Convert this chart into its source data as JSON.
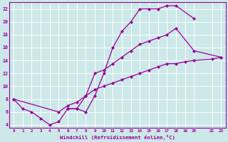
{
  "xlabel": "Windchill (Refroidissement éolien,°C)",
  "bg_color": "#cce8e8",
  "grid_color": "#ffffff",
  "line_color": "#990099",
  "xlim": [
    -0.5,
    23.5
  ],
  "ylim": [
    3.5,
    23
  ],
  "xticks": [
    0,
    1,
    2,
    3,
    4,
    5,
    6,
    7,
    8,
    9,
    10,
    11,
    12,
    13,
    14,
    15,
    16,
    17,
    18,
    19,
    20,
    22,
    23
  ],
  "yticks": [
    4,
    6,
    8,
    10,
    12,
    14,
    16,
    18,
    20,
    22
  ],
  "line1_x": [
    0,
    1,
    2,
    3,
    4,
    5,
    6,
    7,
    8,
    9,
    10,
    11,
    12,
    13,
    14,
    15,
    16,
    17,
    18,
    20
  ],
  "line1_y": [
    8,
    6.5,
    6,
    5,
    4,
    4.5,
    6.5,
    6.5,
    6.0,
    8.5,
    12,
    16,
    18.5,
    20,
    22,
    22,
    22,
    22.5,
    22.5,
    20.5
  ],
  "line2_x": [
    6,
    7,
    8,
    9,
    10,
    11,
    12,
    13,
    14,
    15,
    16,
    17,
    18,
    20,
    23
  ],
  "line2_y": [
    6.5,
    6.5,
    8.5,
    12.0,
    12.5,
    13.5,
    14.5,
    15.5,
    16.5,
    17.0,
    17.5,
    18.0,
    19.0,
    15.5,
    14.5
  ],
  "line3_x": [
    0,
    5,
    6,
    7,
    8,
    9,
    10,
    11,
    12,
    13,
    14,
    15,
    16,
    17,
    18,
    19,
    20,
    22,
    23
  ],
  "line3_y": [
    8,
    6.0,
    7.0,
    7.5,
    8.5,
    9.5,
    10.0,
    10.5,
    11.0,
    11.5,
    12.0,
    12.5,
    13.0,
    13.5,
    13.5,
    13.8,
    14.0,
    14.2,
    14.5
  ]
}
